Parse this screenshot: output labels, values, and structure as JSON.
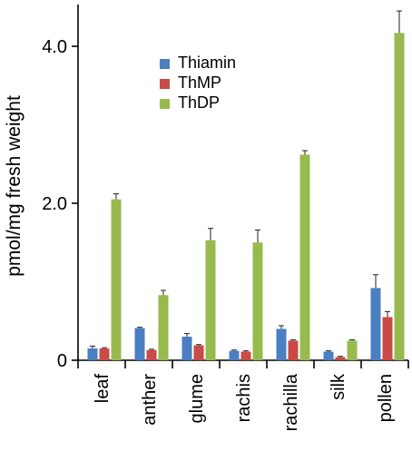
{
  "chart_data": {
    "type": "bar",
    "ylabel": "pmol/mg fresh weight",
    "xlabel": "",
    "ylim": [
      0,
      4.6
    ],
    "yticks": [
      0,
      2.0,
      4.0
    ],
    "ytick_labels": [
      "0",
      "2.0",
      "4.0"
    ],
    "categories": [
      "leaf",
      "anther",
      "glume",
      "rachis",
      "rachilla",
      "silk",
      "pollen"
    ],
    "legend_position": "upper-left-center",
    "series": [
      {
        "name": "Thiamin",
        "color": "#4a7fc1",
        "values": [
          0.15,
          0.41,
          0.3,
          0.12,
          0.4,
          0.11,
          0.92
        ],
        "errors": [
          0.03,
          0.01,
          0.04,
          0.01,
          0.04,
          0.01,
          0.17
        ]
      },
      {
        "name": "ThMP",
        "color": "#c94a46",
        "values": [
          0.15,
          0.13,
          0.19,
          0.11,
          0.25,
          0.04,
          0.55
        ],
        "errors": [
          0.01,
          0.01,
          0.01,
          0.01,
          0.01,
          0.01,
          0.07
        ]
      },
      {
        "name": "ThDP",
        "color": "#97ba4e",
        "values": [
          2.05,
          0.83,
          1.53,
          1.5,
          2.62,
          0.25,
          4.17
        ],
        "errors": [
          0.07,
          0.06,
          0.15,
          0.16,
          0.05,
          0.01,
          0.28
        ]
      }
    ]
  }
}
